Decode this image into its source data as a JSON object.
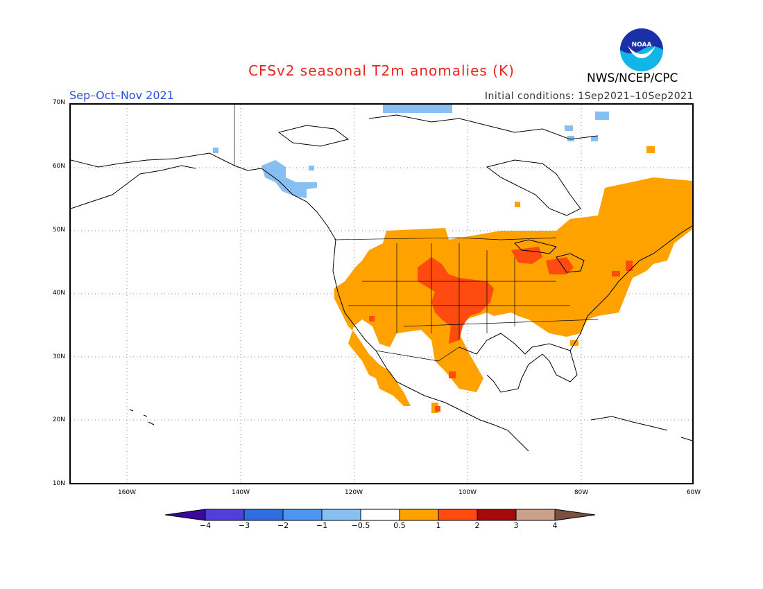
{
  "header": {
    "title": "CFSv2 seasonal T2m anomalies (K)",
    "agency": "NWS/NCEP/CPC",
    "season": "Sep–Oct–Nov 2021",
    "initial_conditions": "Initial conditions: 1Sep2021–10Sep2021",
    "logo_text": "NOAA"
  },
  "map": {
    "lat_ticks": [
      "70N",
      "60N",
      "50N",
      "40N",
      "30N",
      "20N",
      "10N"
    ],
    "lon_ticks": [
      "160W",
      "140W",
      "120W",
      "100W",
      "80W",
      "60W"
    ],
    "extent": {
      "lon_min": -170,
      "lon_max": -60,
      "lat_min": 10,
      "lat_max": 70
    },
    "gridlines": "dotted"
  },
  "legend": {
    "labels": [
      "−4",
      "−3",
      "−2",
      "−1",
      "−0.5",
      "0.5",
      "1",
      "2",
      "3",
      "4"
    ],
    "colors": [
      "#3a0a9c",
      "#5040d8",
      "#2f6ee0",
      "#4d95f0",
      "#88bff3",
      "#ffffff",
      "#ffa200",
      "#ff4a10",
      "#a30a0a",
      "#c9a08a",
      "#7a5040"
    ]
  },
  "anomaly_regions": [
    {
      "name": "Northern Rockies / Plains / Southwest / Mexico",
      "category": "0.5 to 1",
      "color": "#ffa200"
    },
    {
      "name": "Great Lakes / Ontario / Quebec / New England",
      "category": "0.5 to 1",
      "color": "#ffa200"
    },
    {
      "name": "Central Plains (Nebraska / Kansas / Colorado / Texas)",
      "category": "1 to 2",
      "color": "#ff4a10"
    },
    {
      "name": "Michigan / Great Lakes",
      "category": "1 to 2",
      "color": "#ff4a10"
    },
    {
      "name": "Southeast Alaska / British Columbia coast",
      "category": "−1 to −0.5",
      "color": "#88bff3"
    },
    {
      "name": "Canadian Arctic Archipelago",
      "category": "−1 to −0.5",
      "color": "#88bff3"
    }
  ]
}
